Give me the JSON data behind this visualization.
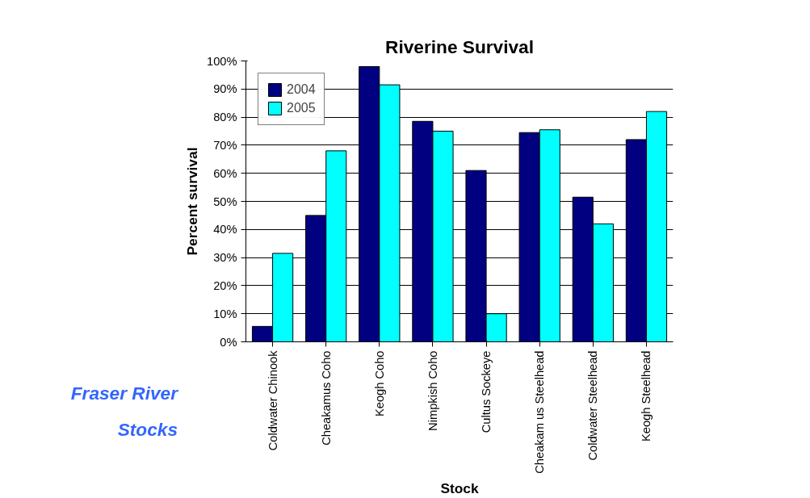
{
  "chart_data": {
    "type": "bar",
    "title": "Riverine Survival",
    "xlabel": "Stock",
    "ylabel": "Percent survival",
    "categories": [
      "Coldwater Chinook",
      "Cheakamus Coho",
      "Keogh Coho",
      "Nimpkish Coho",
      "Cultus Sockeye",
      "Cheakam us Steelhead",
      "Coldwater Steelhead",
      "Keogh Steelhead"
    ],
    "series": [
      {
        "name": "2004",
        "color": "#000080",
        "values": [
          5.5,
          45,
          98,
          78.5,
          61,
          74.5,
          51.5,
          72
        ]
      },
      {
        "name": "2005",
        "color": "#00ffff",
        "values": [
          31.5,
          68,
          91.5,
          75,
          10,
          75.5,
          42,
          82
        ]
      }
    ],
    "ylim": [
      0,
      100
    ],
    "yticks": [
      {
        "value": 0,
        "label": "0%"
      },
      {
        "value": 10,
        "label": "10%"
      },
      {
        "value": 20,
        "label": "20%"
      },
      {
        "value": 30,
        "label": "30%"
      },
      {
        "value": 40,
        "label": "40%"
      },
      {
        "value": 50,
        "label": "50%"
      },
      {
        "value": 60,
        "label": "60%"
      },
      {
        "value": 70,
        "label": "70%"
      },
      {
        "value": 80,
        "label": "80%"
      },
      {
        "value": 90,
        "label": "90%"
      },
      {
        "value": 100,
        "label": "100%"
      }
    ],
    "grid": "y",
    "legend": "top left",
    "annotations": [
      "Fraser River\nStocks"
    ]
  }
}
